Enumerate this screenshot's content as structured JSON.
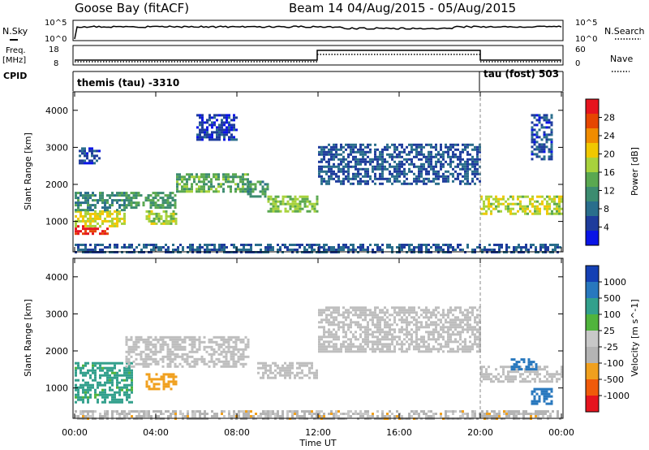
{
  "header": {
    "station": "Goose Bay (fitACF)",
    "beam_date": "Beam 14 04/Aug/2015 - 05/Aug/2015"
  },
  "top_panels": {
    "nsky_label": "N.Sky",
    "nsky_ticks": [
      "10^5",
      "10^0"
    ],
    "nsearch_label": "N.Search",
    "nsearch_ticks": [
      "10^5",
      "10^0"
    ],
    "freq_label": "Freq.",
    "freq_unit": "[MHz]",
    "freq_ticks": [
      "18",
      "8"
    ],
    "nave_label": "Nave",
    "nave_ticks": [
      "60",
      "0"
    ],
    "cpid_label": "CPID",
    "cpid_segments": [
      {
        "text": "themis (tau) -3310",
        "start_hour": 0,
        "end_hour": 20
      },
      {
        "text": "tau (fost) 503",
        "start_hour": 20,
        "end_hour": 24
      }
    ]
  },
  "colors": {
    "power_scale": [
      "#0a14e6",
      "#1e3c9c",
      "#2a6e8c",
      "#3c8c70",
      "#5aa850",
      "#a8d23c",
      "#f0c800",
      "#f08c00",
      "#e64600",
      "#e6141e"
    ],
    "velocity_scale": [
      "#e6141e",
      "#f05a0a",
      "#f0a01e",
      "#b4b4b4",
      "#c8c8c8",
      "#50b43c",
      "#32a08c",
      "#2878be",
      "#1440b4"
    ],
    "ground_scatter": "#bebebe"
  },
  "chart_data": [
    {
      "type": "heatmap",
      "name": "power",
      "ylabel": "Slant Range [km]",
      "ylim": [
        180,
        4500
      ],
      "yticks": [
        "1000",
        "2000",
        "3000",
        "4000"
      ],
      "xlim_hours": [
        0,
        24
      ],
      "xticks": [
        "00:00",
        "04:00",
        "08:00",
        "12:00",
        "16:00",
        "20:00",
        "00:00"
      ],
      "colorbar_label": "Power [dB]",
      "colorbar_ticks": [
        "4",
        "8",
        "12",
        "16",
        "20",
        "24",
        "28"
      ],
      "colorbar_range": [
        0,
        30
      ],
      "echo_regions": [
        {
          "t0": 0.0,
          "t1": 1.6,
          "r0": 650,
          "r1": 900,
          "value": 28
        },
        {
          "t0": 0.0,
          "t1": 2.5,
          "r0": 900,
          "r1": 1300,
          "value": 18
        },
        {
          "t0": 0.0,
          "t1": 2.5,
          "r0": 1300,
          "r1": 1800,
          "value": 10
        },
        {
          "t0": 0.2,
          "t1": 1.2,
          "r0": 2600,
          "r1": 3000,
          "value": 5
        },
        {
          "t0": 2.5,
          "t1": 5.0,
          "r0": 1400,
          "r1": 1800,
          "value": 12
        },
        {
          "t0": 3.5,
          "t1": 5.0,
          "r0": 950,
          "r1": 1300,
          "value": 16
        },
        {
          "t0": 5.0,
          "t1": 8.6,
          "r0": 1800,
          "r1": 2300,
          "value": 13
        },
        {
          "t0": 6.0,
          "t1": 8.0,
          "r0": 3200,
          "r1": 3900,
          "value": 4
        },
        {
          "t0": 8.5,
          "t1": 9.5,
          "r0": 1700,
          "r1": 2100,
          "value": 11
        },
        {
          "t0": 9.5,
          "t1": 12.0,
          "r0": 1300,
          "r1": 1700,
          "value": 15
        },
        {
          "t0": 12.0,
          "t1": 20.0,
          "r0": 2000,
          "r1": 3100,
          "value": 6
        },
        {
          "t0": 20.0,
          "t1": 24.0,
          "r0": 1200,
          "r1": 1700,
          "value": 17
        },
        {
          "t0": 22.5,
          "t1": 23.5,
          "r0": 2700,
          "r1": 3900,
          "value": 5
        },
        {
          "t0": 0.0,
          "t1": 24.0,
          "r0": 180,
          "r1": 400,
          "value": 6
        }
      ]
    },
    {
      "type": "heatmap",
      "name": "velocity",
      "ylabel": "Slant Range [km]",
      "ylim": [
        180,
        4500
      ],
      "yticks": [
        "1000",
        "2000",
        "3000",
        "4000"
      ],
      "xlim_hours": [
        0,
        24
      ],
      "xticks": [
        "00:00",
        "04:00",
        "08:00",
        "12:00",
        "16:00",
        "20:00",
        "00:00"
      ],
      "xlabel": "Time UT",
      "colorbar_label": "Velocity [m s^-1]",
      "colorbar_ticks": [
        "-1000",
        "-500",
        "-100",
        "-25",
        "25",
        "100",
        "500",
        "1000"
      ],
      "colorbar_range": [
        -1200,
        1200
      ],
      "echo_regions": [
        {
          "t0": 0.0,
          "t1": 2.8,
          "r0": 600,
          "r1": 1700,
          "value": 150,
          "gs": false
        },
        {
          "t0": 3.5,
          "t1": 5.0,
          "r0": 950,
          "r1": 1400,
          "value": -300,
          "gs": false
        },
        {
          "t0": 2.5,
          "t1": 8.6,
          "r0": 1600,
          "r1": 2400,
          "value": 0,
          "gs": true
        },
        {
          "t0": 9.0,
          "t1": 12.0,
          "r0": 1300,
          "r1": 1700,
          "value": 0,
          "gs": true
        },
        {
          "t0": 12.0,
          "t1": 20.0,
          "r0": 2000,
          "r1": 3200,
          "value": 0,
          "gs": true
        },
        {
          "t0": 20.0,
          "t1": 24.0,
          "r0": 1200,
          "r1": 1600,
          "value": 0,
          "gs": true
        },
        {
          "t0": 21.5,
          "t1": 22.8,
          "r0": 1500,
          "r1": 1800,
          "value": 700,
          "gs": false
        },
        {
          "t0": 22.5,
          "t1": 23.5,
          "r0": 600,
          "r1": 1000,
          "value": 900,
          "gs": false
        },
        {
          "t0": 0.0,
          "t1": 24.0,
          "r0": 180,
          "r1": 400,
          "value": -50,
          "gs": false
        }
      ]
    }
  ]
}
